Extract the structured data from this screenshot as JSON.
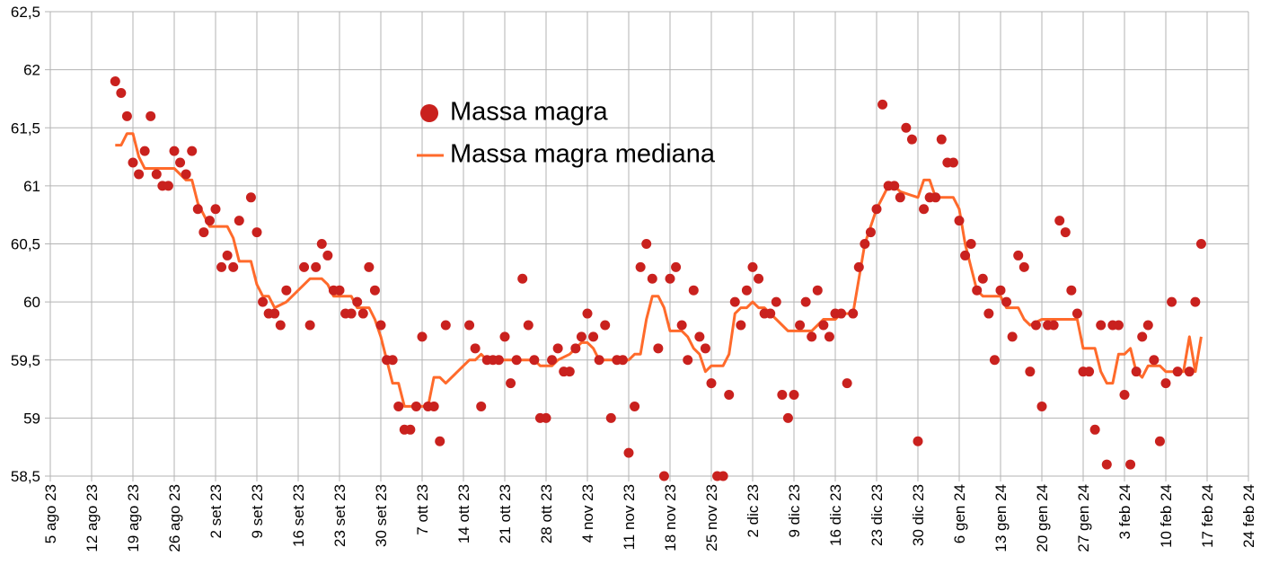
{
  "chart_data": {
    "type": "scatter",
    "xlim": [
      "2023-08-05",
      "2024-02-24"
    ],
    "xticks": [
      {
        "value": "2023-08-05",
        "label": "5 ago 23"
      },
      {
        "value": "2023-08-12",
        "label": "12 ago 23"
      },
      {
        "value": "2023-08-19",
        "label": "19 ago 23"
      },
      {
        "value": "2023-08-26",
        "label": "26 ago 23"
      },
      {
        "value": "2023-09-02",
        "label": "2 set 23"
      },
      {
        "value": "2023-09-09",
        "label": "9 set 23"
      },
      {
        "value": "2023-09-16",
        "label": "16 set 23"
      },
      {
        "value": "2023-09-23",
        "label": "23 set 23"
      },
      {
        "value": "2023-09-30",
        "label": "30 set 23"
      },
      {
        "value": "2023-10-07",
        "label": "7 ott 23"
      },
      {
        "value": "2023-10-14",
        "label": "14 ott 23"
      },
      {
        "value": "2023-10-21",
        "label": "21 ott 23"
      },
      {
        "value": "2023-10-28",
        "label": "28 ott 23"
      },
      {
        "value": "2023-11-04",
        "label": "4 nov 23"
      },
      {
        "value": "2023-11-11",
        "label": "11 nov 23"
      },
      {
        "value": "2023-11-18",
        "label": "18 nov 23"
      },
      {
        "value": "2023-11-25",
        "label": "25 nov 23"
      },
      {
        "value": "2023-12-02",
        "label": "2 dic 23"
      },
      {
        "value": "2023-12-09",
        "label": "9 dic 23"
      },
      {
        "value": "2023-12-16",
        "label": "16 dic 23"
      },
      {
        "value": "2023-12-23",
        "label": "23 dic 23"
      },
      {
        "value": "2023-12-30",
        "label": "30 dic 23"
      },
      {
        "value": "2024-01-06",
        "label": "6 gen 24"
      },
      {
        "value": "2024-01-13",
        "label": "13 gen 24"
      },
      {
        "value": "2024-01-20",
        "label": "20 gen 24"
      },
      {
        "value": "2024-01-27",
        "label": "27 gen 24"
      },
      {
        "value": "2024-02-03",
        "label": "3 feb 24"
      },
      {
        "value": "2024-02-10",
        "label": "10 feb 24"
      },
      {
        "value": "2024-02-17",
        "label": "17 feb 24"
      },
      {
        "value": "2024-02-24",
        "label": "24 feb 24"
      }
    ],
    "ylim": [
      58.5,
      62.5
    ],
    "yticks": [
      {
        "value": 58.5,
        "label": "58,5"
      },
      59,
      {
        "value": 59.5,
        "label": "59,5"
      },
      60,
      {
        "value": 60.5,
        "label": "60,5"
      },
      61,
      {
        "value": 61.5,
        "label": "61,5"
      },
      62,
      {
        "value": 62.5,
        "label": "62,5"
      }
    ],
    "grid": true,
    "series": [
      {
        "name": "Massa magra",
        "kind": "marker",
        "color": "#c9211e",
        "x": [
          "2023-08-16",
          "2023-08-17",
          "2023-08-18",
          "2023-08-19",
          "2023-08-20",
          "2023-08-21",
          "2023-08-22",
          "2023-08-23",
          "2023-08-24",
          "2023-08-25",
          "2023-08-26",
          "2023-08-27",
          "2023-08-28",
          "2023-08-29",
          "2023-08-30",
          "2023-08-31",
          "2023-09-01",
          "2023-09-02",
          "2023-09-03",
          "2023-09-04",
          "2023-09-05",
          "2023-09-06",
          "2023-09-08",
          "2023-09-09",
          "2023-09-10",
          "2023-09-11",
          "2023-09-12",
          "2023-09-13",
          "2023-09-14",
          "2023-09-17",
          "2023-09-18",
          "2023-09-19",
          "2023-09-20",
          "2023-09-21",
          "2023-09-22",
          "2023-09-23",
          "2023-09-24",
          "2023-09-25",
          "2023-09-26",
          "2023-09-27",
          "2023-09-28",
          "2023-09-29",
          "2023-09-30",
          "2023-10-01",
          "2023-10-02",
          "2023-10-03",
          "2023-10-04",
          "2023-10-05",
          "2023-10-06",
          "2023-10-07",
          "2023-10-08",
          "2023-10-09",
          "2023-10-10",
          "2023-10-11",
          "2023-10-15",
          "2023-10-16",
          "2023-10-17",
          "2023-10-18",
          "2023-10-19",
          "2023-10-20",
          "2023-10-21",
          "2023-10-22",
          "2023-10-23",
          "2023-10-24",
          "2023-10-25",
          "2023-10-26",
          "2023-10-27",
          "2023-10-28",
          "2023-10-29",
          "2023-10-30",
          "2023-10-31",
          "2023-11-01",
          "2023-11-02",
          "2023-11-03",
          "2023-11-04",
          "2023-11-05",
          "2023-11-06",
          "2023-11-07",
          "2023-11-08",
          "2023-11-09",
          "2023-11-10",
          "2023-11-11",
          "2023-11-12",
          "2023-11-13",
          "2023-11-14",
          "2023-11-15",
          "2023-11-16",
          "2023-11-17",
          "2023-11-18",
          "2023-11-19",
          "2023-11-20",
          "2023-11-21",
          "2023-11-22",
          "2023-11-23",
          "2023-11-24",
          "2023-11-25",
          "2023-11-26",
          "2023-11-27",
          "2023-11-28",
          "2023-11-29",
          "2023-11-30",
          "2023-12-01",
          "2023-12-02",
          "2023-12-03",
          "2023-12-04",
          "2023-12-05",
          "2023-12-06",
          "2023-12-07",
          "2023-12-08",
          "2023-12-09",
          "2023-12-10",
          "2023-12-11",
          "2023-12-12",
          "2023-12-13",
          "2023-12-14",
          "2023-12-15",
          "2023-12-16",
          "2023-12-17",
          "2023-12-18",
          "2023-12-19",
          "2023-12-20",
          "2023-12-21",
          "2023-12-22",
          "2023-12-23",
          "2023-12-24",
          "2023-12-25",
          "2023-12-26",
          "2023-12-27",
          "2023-12-28",
          "2023-12-29",
          "2023-12-30",
          "2023-12-31",
          "2024-01-01",
          "2024-01-02",
          "2024-01-03",
          "2024-01-04",
          "2024-01-05",
          "2024-01-06",
          "2024-01-07",
          "2024-01-08",
          "2024-01-09",
          "2024-01-10",
          "2024-01-11",
          "2024-01-12",
          "2024-01-13",
          "2024-01-14",
          "2024-01-15",
          "2024-01-16",
          "2024-01-17",
          "2024-01-18",
          "2024-01-19",
          "2024-01-20",
          "2024-01-21",
          "2024-01-22",
          "2024-01-23",
          "2024-01-24",
          "2024-01-25",
          "2024-01-26",
          "2024-01-27",
          "2024-01-28",
          "2024-01-29",
          "2024-01-30",
          "2024-01-31",
          "2024-02-01",
          "2024-02-02",
          "2024-02-03",
          "2024-02-04",
          "2024-02-05",
          "2024-02-06",
          "2024-02-07",
          "2024-02-08",
          "2024-02-09",
          "2024-02-10",
          "2024-02-11",
          "2024-02-12",
          "2024-02-14",
          "2024-02-15",
          "2024-02-16"
        ],
        "values": [
          61.9,
          61.8,
          61.6,
          61.2,
          61.1,
          61.3,
          61.6,
          61.1,
          61.0,
          61.0,
          61.3,
          61.2,
          61.1,
          61.3,
          60.8,
          60.6,
          60.7,
          60.8,
          60.3,
          60.4,
          60.3,
          60.7,
          60.9,
          60.6,
          60.0,
          59.9,
          59.9,
          59.8,
          60.1,
          60.3,
          59.8,
          60.3,
          60.5,
          60.4,
          60.1,
          60.1,
          59.9,
          59.9,
          60.0,
          59.9,
          60.3,
          60.1,
          59.8,
          59.5,
          59.5,
          59.1,
          58.9,
          58.9,
          59.1,
          59.7,
          59.1,
          59.1,
          58.8,
          59.8,
          59.8,
          59.6,
          59.1,
          59.5,
          59.5,
          59.5,
          59.7,
          59.3,
          59.5,
          60.2,
          59.8,
          59.5,
          59.0,
          59.0,
          59.5,
          59.6,
          59.4,
          59.4,
          59.6,
          59.7,
          59.9,
          59.7,
          59.5,
          59.8,
          59.0,
          59.5,
          59.5,
          58.7,
          59.1,
          60.3,
          60.5,
          60.2,
          59.6,
          58.5,
          60.2,
          60.3,
          59.8,
          59.5,
          60.1,
          59.7,
          59.6,
          59.3,
          58.5,
          58.5,
          59.2,
          60.0,
          59.8,
          60.1,
          60.3,
          60.2,
          59.9,
          59.9,
          60.0,
          59.2,
          59.0,
          59.2,
          59.8,
          60.0,
          59.7,
          60.1,
          59.8,
          59.7,
          59.9,
          59.9,
          59.3,
          59.9,
          60.3,
          60.5,
          60.6,
          60.8,
          61.7,
          61.0,
          61.0,
          60.9,
          61.5,
          61.4,
          58.8,
          60.8,
          60.9,
          60.9,
          61.4,
          61.2,
          61.2,
          60.7,
          60.4,
          60.5,
          60.1,
          60.2,
          59.9,
          59.5,
          60.1,
          60.0,
          59.7,
          60.4,
          60.3,
          59.4,
          59.8,
          59.1,
          59.8,
          59.8,
          60.7,
          60.6,
          60.1,
          59.9,
          59.4,
          59.4,
          58.9,
          59.8,
          58.6,
          59.8,
          59.8,
          59.2,
          58.6,
          59.4,
          59.7,
          59.8,
          59.5,
          58.8,
          59.3,
          60.0,
          59.4,
          59.4,
          60.0,
          60.5
        ]
      },
      {
        "name": "Massa magra mediana",
        "kind": "line",
        "color": "#ff6a2b",
        "x": [
          "2023-08-16",
          "2023-08-17",
          "2023-08-18",
          "2023-08-19",
          "2023-08-20",
          "2023-08-21",
          "2023-08-26",
          "2023-08-28",
          "2023-08-29",
          "2023-08-30",
          "2023-08-31",
          "2023-09-01",
          "2023-09-04",
          "2023-09-05",
          "2023-09-06",
          "2023-09-08",
          "2023-09-09",
          "2023-09-10",
          "2023-09-11",
          "2023-09-12",
          "2023-09-14",
          "2023-09-16",
          "2023-09-18",
          "2023-09-20",
          "2023-09-21",
          "2023-09-22",
          "2023-09-25",
          "2023-09-26",
          "2023-09-28",
          "2023-09-29",
          "2023-09-30",
          "2023-10-01",
          "2023-10-02",
          "2023-10-03",
          "2023-10-04",
          "2023-10-08",
          "2023-10-09",
          "2023-10-10",
          "2023-10-11",
          "2023-10-14",
          "2023-10-15",
          "2023-10-16",
          "2023-10-17",
          "2023-10-18",
          "2023-10-26",
          "2023-10-27",
          "2023-10-29",
          "2023-10-30",
          "2023-11-01",
          "2023-11-02",
          "2023-11-03",
          "2023-11-04",
          "2023-11-05",
          "2023-11-06",
          "2023-11-11",
          "2023-11-12",
          "2023-11-13",
          "2023-11-14",
          "2023-11-15",
          "2023-11-16",
          "2023-11-17",
          "2023-11-18",
          "2023-11-20",
          "2023-11-21",
          "2023-11-22",
          "2023-11-23",
          "2023-11-24",
          "2023-11-25",
          "2023-11-27",
          "2023-11-28",
          "2023-11-29",
          "2023-11-30",
          "2023-12-01",
          "2023-12-02",
          "2023-12-03",
          "2023-12-04",
          "2023-12-06",
          "2023-12-08",
          "2023-12-12",
          "2023-12-13",
          "2023-12-14",
          "2023-12-16",
          "2023-12-17",
          "2023-12-19",
          "2023-12-20",
          "2023-12-21",
          "2023-12-22",
          "2023-12-23",
          "2023-12-24",
          "2023-12-25",
          "2023-12-26",
          "2023-12-27",
          "2023-12-30",
          "2023-12-31",
          "2024-01-01",
          "2024-01-02",
          "2024-01-05",
          "2024-01-06",
          "2024-01-07",
          "2024-01-08",
          "2024-01-09",
          "2024-01-10",
          "2024-01-13",
          "2024-01-14",
          "2024-01-16",
          "2024-01-17",
          "2024-01-18",
          "2024-01-20",
          "2024-01-26",
          "2024-01-27",
          "2024-01-29",
          "2024-01-30",
          "2024-01-31",
          "2024-02-01",
          "2024-02-02",
          "2024-02-03",
          "2024-02-04",
          "2024-02-05",
          "2024-02-06",
          "2024-02-07",
          "2024-02-09",
          "2024-02-10",
          "2024-02-13",
          "2024-02-14",
          "2024-02-15",
          "2024-02-16"
        ],
        "values": [
          61.35,
          61.35,
          61.45,
          61.45,
          61.25,
          61.15,
          61.15,
          61.05,
          61.05,
          60.85,
          60.75,
          60.65,
          60.65,
          60.55,
          60.35,
          60.35,
          60.15,
          60.05,
          60.05,
          59.95,
          60.0,
          60.1,
          60.2,
          60.2,
          60.15,
          60.05,
          60.05,
          59.95,
          59.95,
          59.85,
          59.7,
          59.5,
          59.3,
          59.3,
          59.1,
          59.1,
          59.35,
          59.35,
          59.3,
          59.45,
          59.5,
          59.5,
          59.55,
          59.5,
          59.5,
          59.45,
          59.45,
          59.5,
          59.55,
          59.6,
          59.65,
          59.65,
          59.6,
          59.5,
          59.5,
          59.55,
          59.55,
          59.85,
          60.05,
          60.05,
          59.95,
          59.75,
          59.75,
          59.7,
          59.6,
          59.55,
          59.4,
          59.45,
          59.45,
          59.55,
          59.9,
          59.95,
          59.95,
          60.0,
          59.95,
          59.95,
          59.85,
          59.75,
          59.75,
          59.8,
          59.85,
          59.85,
          59.9,
          59.9,
          60.2,
          60.5,
          60.65,
          60.8,
          60.9,
          61.0,
          61.0,
          60.95,
          60.9,
          61.05,
          61.05,
          60.9,
          60.9,
          60.8,
          60.5,
          60.3,
          60.1,
          60.05,
          60.05,
          59.95,
          59.95,
          59.85,
          59.8,
          59.85,
          59.85,
          59.6,
          59.6,
          59.4,
          59.3,
          59.3,
          59.55,
          59.55,
          59.6,
          59.4,
          59.35,
          59.45,
          59.45,
          59.4,
          59.4,
          59.7,
          59.4,
          59.7
        ]
      }
    ]
  }
}
